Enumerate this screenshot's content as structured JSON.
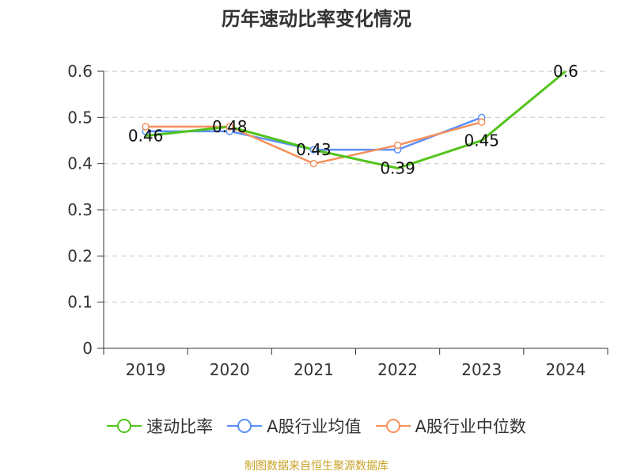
{
  "chart_data": {
    "type": "line",
    "title": "历年速动比率变化情况",
    "categories": [
      "2019",
      "2020",
      "2021",
      "2022",
      "2023",
      "2024"
    ],
    "ylim": [
      0,
      0.6
    ],
    "yticks": [
      "0",
      "0.1",
      "0.2",
      "0.3",
      "0.4",
      "0.5",
      "0.6"
    ],
    "grid": true,
    "legend_position": "bottom",
    "series": [
      {
        "name": "速动比率",
        "color": "#52c41a",
        "values": [
          0.46,
          0.48,
          0.43,
          0.39,
          0.45,
          0.6
        ],
        "labels": [
          "0.46",
          "0.48",
          "0.43",
          "0.39",
          "0.45",
          "0.6"
        ],
        "markers": false
      },
      {
        "name": "A股行业均值",
        "color": "#5b8ff9",
        "values": [
          0.47,
          0.47,
          0.43,
          0.43,
          0.5,
          null
        ],
        "markers": true
      },
      {
        "name": "A股行业中位数",
        "color": "#f6905b",
        "values": [
          0.48,
          0.48,
          0.4,
          0.44,
          0.49,
          null
        ],
        "markers": true
      }
    ]
  },
  "source": "制图数据来自恒生聚源数据库"
}
